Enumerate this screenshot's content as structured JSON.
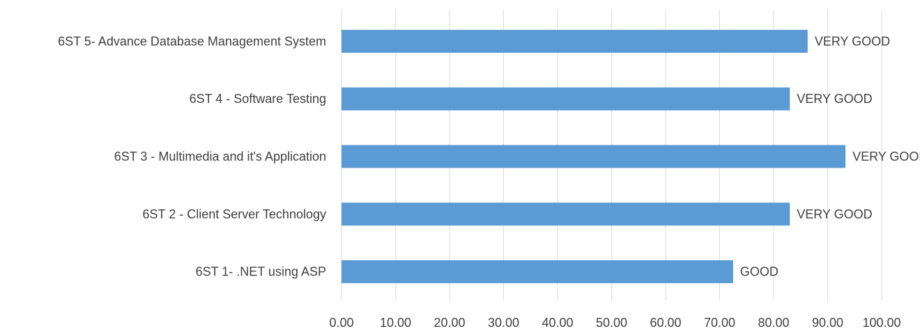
{
  "chart_data": {
    "type": "bar",
    "orientation": "horizontal",
    "categories": [
      "6ST 1- .NET using ASP",
      "6ST 2 - Client Server Technology",
      "6ST 3 - Multimedia and it's Application",
      "6ST 4 - Software Testing",
      "6ST 5- Advance Database Management System"
    ],
    "series": [
      {
        "values": [
          72.5,
          83,
          93.3,
          83,
          86.3
        ],
        "data_labels": [
          "GOOD",
          "VERY GOOD",
          "VERY GOOD",
          "VERY GOOD",
          "VERY GOOD"
        ]
      }
    ],
    "xlim": [
      0,
      100
    ],
    "x_ticks": [
      "0.00",
      "10.00",
      "20.00",
      "30.00",
      "40.00",
      "50.00",
      "60.00",
      "70.00",
      "80.00",
      "90.00",
      "100.00"
    ],
    "grid": "vertical",
    "legend": "none",
    "colors": {
      "bar": "#5B9BD5",
      "grid": "#D9D9D9",
      "text": "#404040"
    }
  }
}
